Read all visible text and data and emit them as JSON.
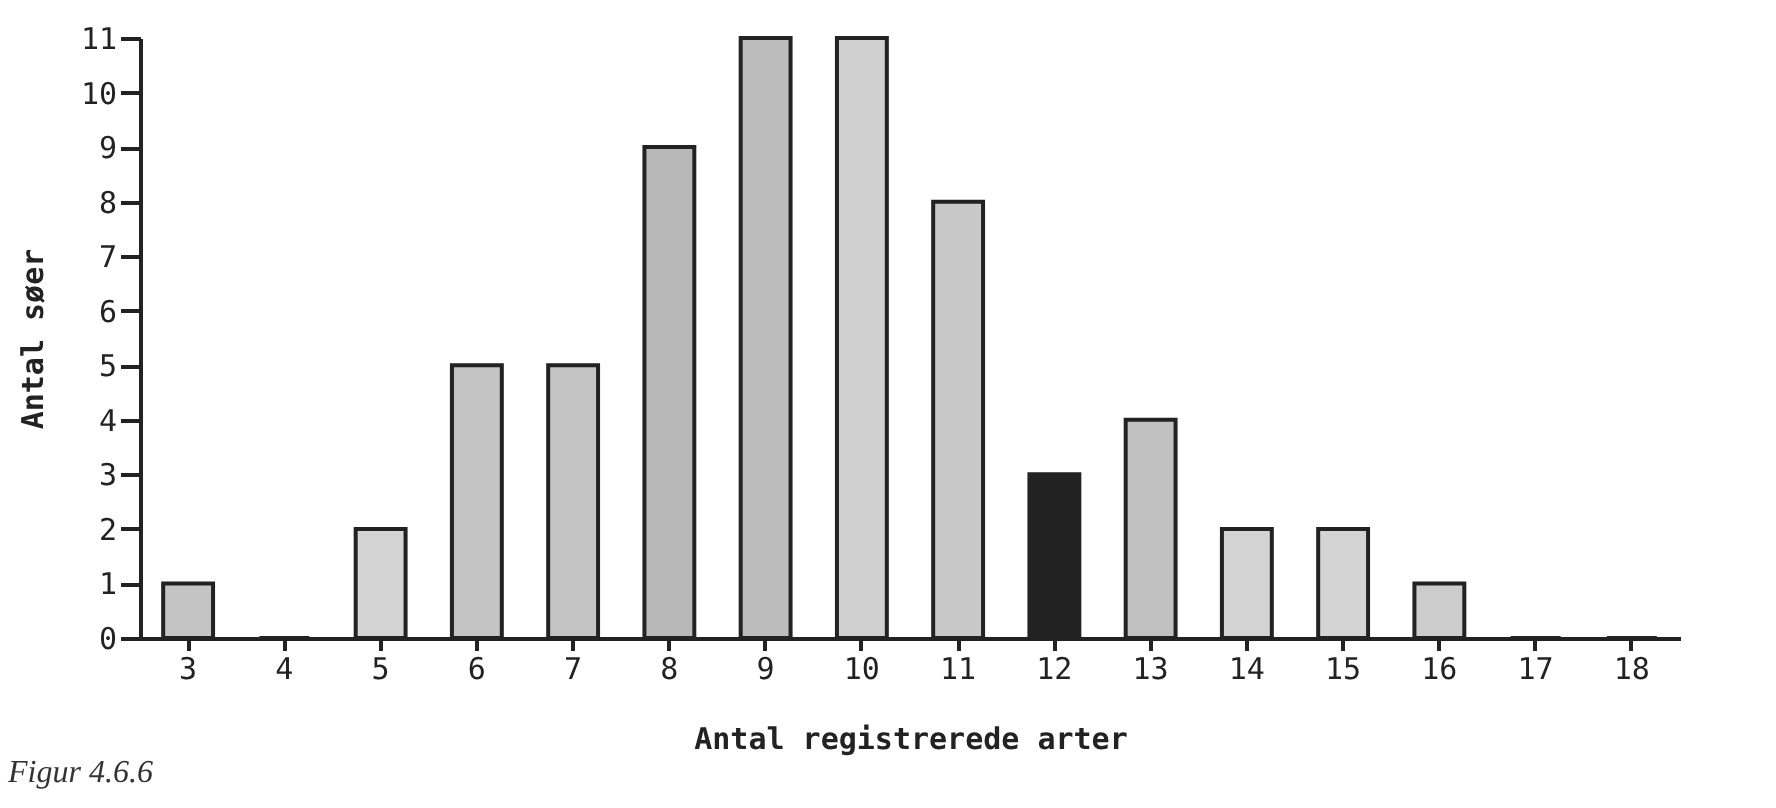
{
  "chart_data": {
    "type": "bar",
    "xlabel": "Antal registrerede arter",
    "ylabel": "Antal søer",
    "categories": [
      "3",
      "4",
      "5",
      "6",
      "7",
      "8",
      "9",
      "10",
      "11",
      "12",
      "13",
      "14",
      "15",
      "16",
      "17",
      "18"
    ],
    "values": [
      1,
      0,
      2,
      5,
      5,
      9,
      11,
      11,
      8,
      3,
      4,
      2,
      2,
      1,
      0,
      0
    ],
    "colors": [
      "#c4c4c4",
      "#c4c4c4",
      "#d4d4d4",
      "#c4c4c4",
      "#c4c4c4",
      "#b8b8b8",
      "#bcbcbc",
      "#d0d0d0",
      "#c8c8c8",
      "#222222",
      "#c0c0c0",
      "#d4d4d4",
      "#d4d4d4",
      "#cccccc",
      "#c4c4c4",
      "#c4c4c4"
    ],
    "ylim": [
      0,
      11
    ],
    "yticks": [
      0,
      1,
      2,
      3,
      4,
      5,
      6,
      7,
      8,
      9,
      10,
      11
    ],
    "annotations": [
      "Figur 4.6.6"
    ]
  }
}
